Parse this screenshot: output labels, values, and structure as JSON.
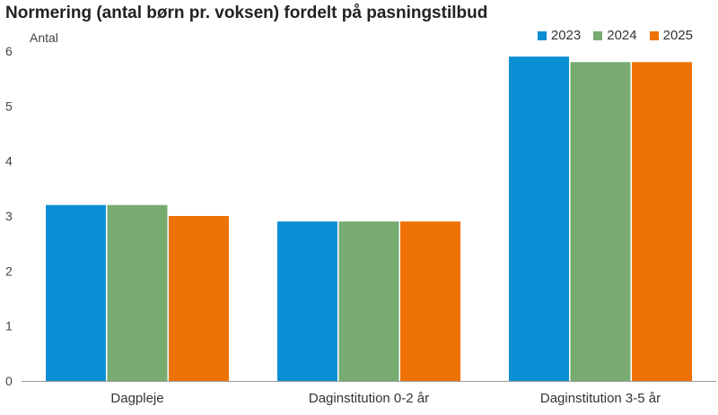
{
  "title": "Normering (antal børn pr. voksen) fordelt på pasningstilbud",
  "chart_data": {
    "type": "bar",
    "title": "Normering (antal børn pr. voksen) fordelt på pasningstilbud",
    "ylabel": "Antal",
    "xlabel": "",
    "categories": [
      "Dagpleje",
      "Daginstitution 0-2 år",
      "Daginstitution 3-5 år"
    ],
    "series": [
      {
        "name": "2023",
        "color": "#0a8fd4",
        "values": [
          3.2,
          2.9,
          5.9
        ]
      },
      {
        "name": "2024",
        "color": "#77ab70",
        "values": [
          3.2,
          2.9,
          5.8
        ]
      },
      {
        "name": "2025",
        "color": "#ee7203",
        "values": [
          3.0,
          2.9,
          5.8
        ]
      }
    ],
    "ylim": [
      0,
      6
    ],
    "yticks": [
      0,
      1,
      2,
      3,
      4,
      5,
      6
    ],
    "grid": false,
    "legend_position": "top-right"
  }
}
